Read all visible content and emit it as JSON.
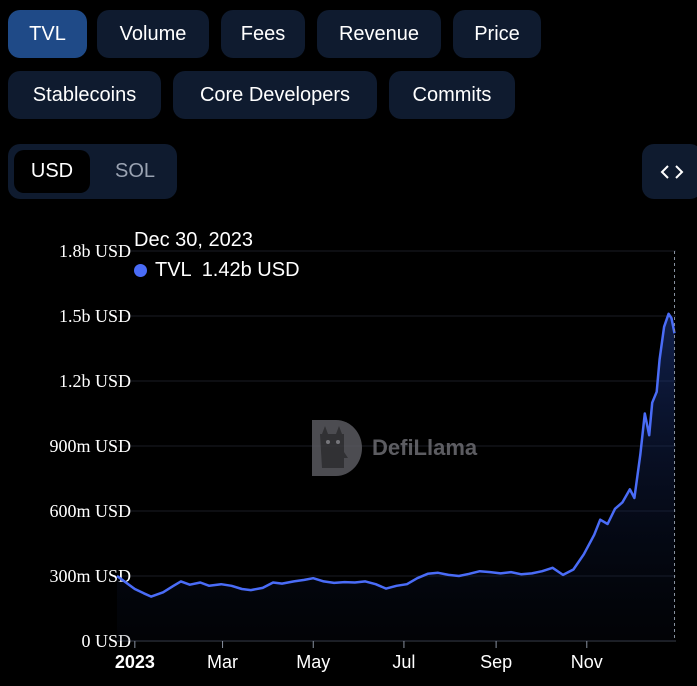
{
  "metric_tabs": [
    {
      "label": "TVL",
      "active": true
    },
    {
      "label": "Volume",
      "active": false
    },
    {
      "label": "Fees",
      "active": false
    },
    {
      "label": "Revenue",
      "active": false
    },
    {
      "label": "Price",
      "active": false
    },
    {
      "label": "Stablecoins",
      "active": false
    },
    {
      "label": "Core Developers",
      "active": false
    },
    {
      "label": "Commits",
      "active": false
    }
  ],
  "currency_toggle": {
    "options": [
      "USD",
      "SOL"
    ],
    "selected": "USD"
  },
  "embed_button": {
    "icon": "code-brackets-icon"
  },
  "tooltip": {
    "date": "Dec 30, 2023",
    "series": "TVL",
    "value": "1.42b USD"
  },
  "watermark": {
    "text": "DefiLlama"
  },
  "colors": {
    "accent": "#4a6cf7",
    "pill_bg": "#0f1b2f",
    "pill_active": "#1f4a87",
    "background": "#000000"
  },
  "chart_data": {
    "type": "area",
    "series": [
      {
        "name": "TVL",
        "color": "#4a6cf7"
      }
    ],
    "y_ticks": [
      "0 USD",
      "300m USD",
      "600m USD",
      "900m USD",
      "1.2b USD",
      "1.5b USD",
      "1.8b USD"
    ],
    "ylim": [
      0,
      1800
    ],
    "y_unit": "m USD",
    "x_ticks": [
      {
        "label": "2023",
        "date": "2023-01-01",
        "bold": true
      },
      {
        "label": "Mar",
        "date": "2023-03-01",
        "bold": false
      },
      {
        "label": "May",
        "date": "2023-05-01",
        "bold": false
      },
      {
        "label": "Jul",
        "date": "2023-07-01",
        "bold": false
      },
      {
        "label": "Sep",
        "date": "2023-09-01",
        "bold": false
      },
      {
        "label": "Nov",
        "date": "2023-11-01",
        "bold": false
      }
    ],
    "xlim": [
      "2022-12-20",
      "2023-12-31"
    ],
    "points": [
      [
        "2022-12-20",
        300
      ],
      [
        "2022-12-25",
        275
      ],
      [
        "2023-01-01",
        240
      ],
      [
        "2023-01-07",
        220
      ],
      [
        "2023-01-12",
        205
      ],
      [
        "2023-01-20",
        225
      ],
      [
        "2023-01-27",
        255
      ],
      [
        "2023-02-01",
        275
      ],
      [
        "2023-02-07",
        260
      ],
      [
        "2023-02-14",
        270
      ],
      [
        "2023-02-20",
        255
      ],
      [
        "2023-02-28",
        262
      ],
      [
        "2023-03-07",
        255
      ],
      [
        "2023-03-14",
        240
      ],
      [
        "2023-03-20",
        235
      ],
      [
        "2023-03-28",
        245
      ],
      [
        "2023-04-04",
        270
      ],
      [
        "2023-04-10",
        265
      ],
      [
        "2023-04-18",
        275
      ],
      [
        "2023-04-25",
        282
      ],
      [
        "2023-05-01",
        290
      ],
      [
        "2023-05-08",
        275
      ],
      [
        "2023-05-15",
        268
      ],
      [
        "2023-05-22",
        272
      ],
      [
        "2023-05-29",
        270
      ],
      [
        "2023-06-05",
        275
      ],
      [
        "2023-06-12",
        262
      ],
      [
        "2023-06-19",
        242
      ],
      [
        "2023-06-26",
        255
      ],
      [
        "2023-07-03",
        262
      ],
      [
        "2023-07-10",
        290
      ],
      [
        "2023-07-17",
        310
      ],
      [
        "2023-07-24",
        315
      ],
      [
        "2023-07-31",
        305
      ],
      [
        "2023-08-07",
        300
      ],
      [
        "2023-08-14",
        310
      ],
      [
        "2023-08-21",
        322
      ],
      [
        "2023-08-28",
        318
      ],
      [
        "2023-09-04",
        312
      ],
      [
        "2023-09-11",
        318
      ],
      [
        "2023-09-18",
        308
      ],
      [
        "2023-09-25",
        312
      ],
      [
        "2023-10-02",
        322
      ],
      [
        "2023-10-09",
        338
      ],
      [
        "2023-10-16",
        305
      ],
      [
        "2023-10-23",
        330
      ],
      [
        "2023-10-30",
        400
      ],
      [
        "2023-11-06",
        490
      ],
      [
        "2023-11-10",
        560
      ],
      [
        "2023-11-15",
        540
      ],
      [
        "2023-11-20",
        610
      ],
      [
        "2023-11-25",
        640
      ],
      [
        "2023-11-30",
        700
      ],
      [
        "2023-12-03",
        660
      ],
      [
        "2023-12-07",
        860
      ],
      [
        "2023-12-10",
        1050
      ],
      [
        "2023-12-13,",
        950
      ],
      [
        "2023-12-15",
        1100
      ],
      [
        "2023-12-18",
        1150
      ],
      [
        "2023-12-20",
        1300
      ],
      [
        "2023-12-23",
        1450
      ],
      [
        "2023-12-26",
        1510
      ],
      [
        "2023-12-28",
        1490
      ],
      [
        "2023-12-30",
        1420
      ]
    ]
  }
}
